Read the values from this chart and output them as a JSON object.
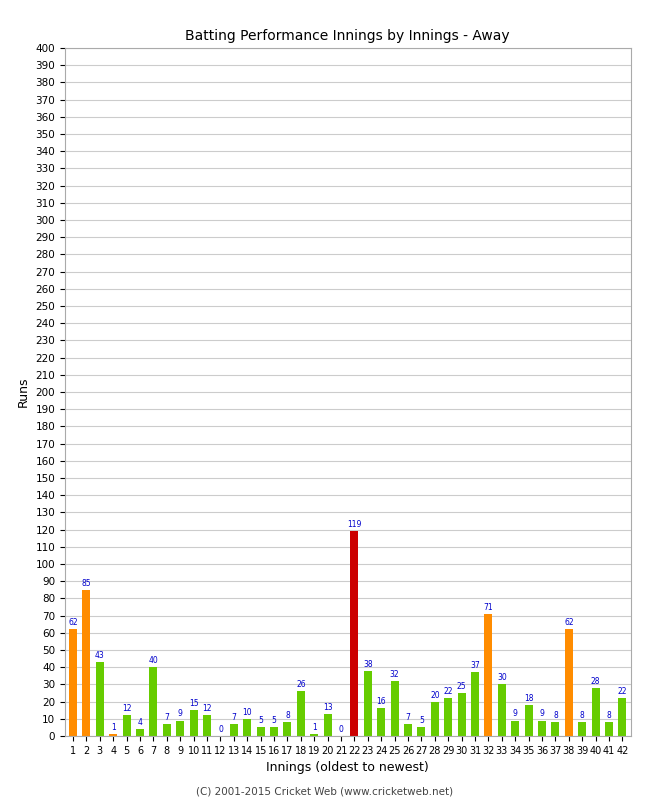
{
  "title": "Batting Performance Innings by Innings - Away",
  "xlabel": "Innings (oldest to newest)",
  "ylabel": "Runs",
  "ytick_step": 10,
  "ymin": 0,
  "ymax": 400,
  "innings": [
    1,
    2,
    3,
    4,
    5,
    6,
    7,
    8,
    9,
    10,
    11,
    12,
    13,
    14,
    15,
    16,
    17,
    18,
    19,
    20,
    21,
    22,
    23,
    24,
    25,
    26,
    27,
    28,
    29,
    30,
    31,
    32,
    33,
    34,
    35,
    36,
    37,
    38,
    39,
    40,
    41,
    42
  ],
  "values": [
    62,
    85,
    43,
    1,
    12,
    4,
    40,
    7,
    9,
    15,
    12,
    0,
    7,
    10,
    5,
    5,
    8,
    26,
    1,
    13,
    0,
    119,
    38,
    16,
    32,
    7,
    5,
    20,
    22,
    25,
    37,
    71,
    30,
    9,
    18,
    9,
    8,
    62,
    8,
    28,
    8,
    22
  ],
  "colors": [
    "#ff8c00",
    "#ff8c00",
    "#66cc00",
    "#ff8c00",
    "#66cc00",
    "#66cc00",
    "#66cc00",
    "#66cc00",
    "#66cc00",
    "#66cc00",
    "#66cc00",
    "#66cc00",
    "#66cc00",
    "#66cc00",
    "#66cc00",
    "#66cc00",
    "#66cc00",
    "#66cc00",
    "#66cc00",
    "#66cc00",
    "#66cc00",
    "#cc0000",
    "#66cc00",
    "#66cc00",
    "#66cc00",
    "#66cc00",
    "#66cc00",
    "#66cc00",
    "#66cc00",
    "#66cc00",
    "#66cc00",
    "#ff8c00",
    "#66cc00",
    "#66cc00",
    "#66cc00",
    "#66cc00",
    "#66cc00",
    "#ff8c00",
    "#66cc00",
    "#66cc00",
    "#66cc00",
    "#66cc00"
  ],
  "label_color": "#0000cc",
  "bg_color": "#ffffff",
  "grid_color": "#cccccc",
  "footer": "(C) 2001-2015 Cricket Web (www.cricketweb.net)"
}
